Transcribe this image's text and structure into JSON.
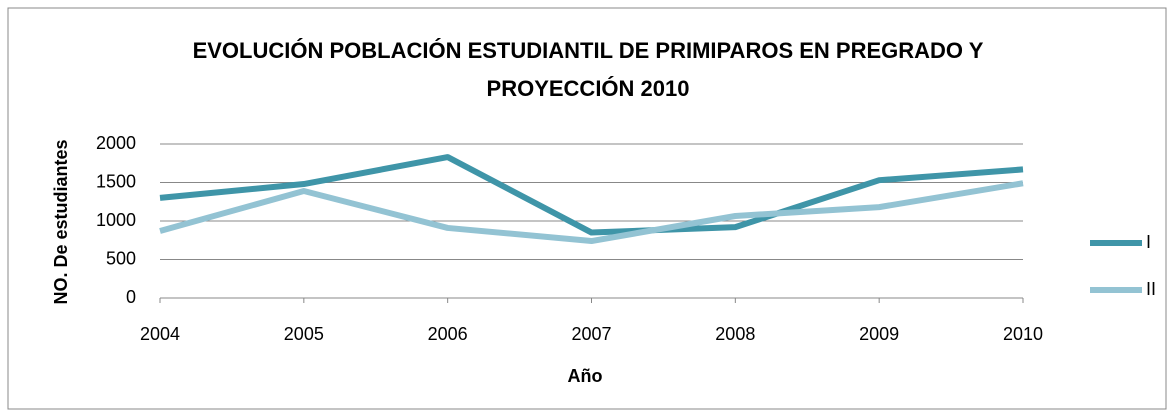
{
  "chart_data": {
    "type": "line",
    "title": "EVOLUCIÓN POBLACIÓN ESTUDIANTIL DE PRIMIPAROS EN PREGRADO Y PROYECCIÓN 2010",
    "x_label": "Año",
    "y_label": "NO. De estudiantes",
    "x": [
      2004,
      2005,
      2006,
      2007,
      2008,
      2009,
      2010
    ],
    "xlim": [
      2004,
      2010
    ],
    "xticks": [
      2004,
      2005,
      2006,
      2007,
      2008,
      2009,
      2010
    ],
    "ylim": [
      0,
      2000
    ],
    "yticks": [
      0,
      500,
      1000,
      1500,
      2000
    ],
    "grid": true,
    "legend": "right",
    "series": [
      {
        "name": "I",
        "color": "#3f95a8",
        "values": [
          1300,
          1480,
          1830,
          850,
          920,
          1530,
          1670
        ]
      },
      {
        "name": "II",
        "color": "#93c3d3",
        "values": [
          870,
          1390,
          910,
          740,
          1065,
          1180,
          1490
        ]
      }
    ]
  }
}
